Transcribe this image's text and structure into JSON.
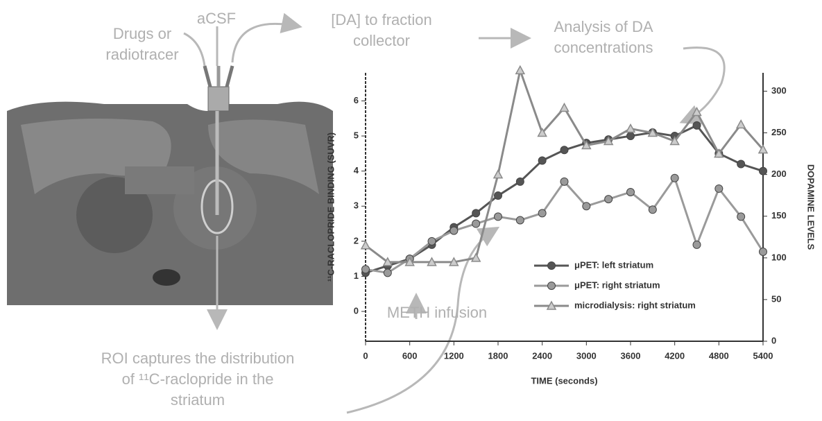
{
  "annotations": {
    "drugs": [
      "Drugs or",
      "radiotracer"
    ],
    "acsf": [
      "aCSF"
    ],
    "fraction": [
      "[DA] to fraction",
      "collector"
    ],
    "analysis": [
      "Analysis of DA",
      "concentrations"
    ],
    "roi": [
      "ROI captures the distribution",
      "of ¹¹C-raclopride in the",
      "striatum"
    ],
    "meth": [
      "METH infusion"
    ]
  },
  "chart_data": {
    "type": "line",
    "x_label": "TIME (seconds)",
    "y_label": "¹¹C-RACLOPRIDE BINDING (SUVR)",
    "y2_label": "DOPAMINE LEVELS",
    "x": [
      0,
      300,
      600,
      900,
      1200,
      1500,
      1800,
      2100,
      2400,
      2700,
      3000,
      3300,
      3600,
      3900,
      4200,
      4500,
      4800,
      5100,
      5400
    ],
    "series": [
      {
        "name": "μPET: left striatum",
        "color": "#555555",
        "marker": "circle",
        "values": [
          1.1,
          1.3,
          1.5,
          1.9,
          2.4,
          2.8,
          3.3,
          3.7,
          4.3,
          4.6,
          4.8,
          4.9,
          5.0,
          5.1,
          5.0,
          5.3,
          4.5,
          4.2,
          4.0
        ]
      },
      {
        "name": "μPET: right striatum",
        "color": "#9a9a9a",
        "marker": "circle",
        "values": [
          1.2,
          1.1,
          1.5,
          2.0,
          2.3,
          2.5,
          2.7,
          2.6,
          2.8,
          3.7,
          3.0,
          3.2,
          3.4,
          2.9,
          3.8,
          1.9,
          3.5,
          2.7,
          1.7
        ]
      },
      {
        "name": "microdialysis: right striatum",
        "color": "#8a8a8a",
        "marker": "triangle",
        "axis": "y2",
        "values": [
          115,
          95,
          95,
          95,
          95,
          100,
          200,
          325,
          250,
          280,
          235,
          240,
          255,
          250,
          240,
          275,
          225,
          260,
          230
        ]
      }
    ],
    "xlim": [
      0,
      5400
    ],
    "xticks": [
      0,
      600,
      1200,
      1800,
      2400,
      3000,
      3600,
      4200,
      4800,
      5400
    ],
    "ylim": [
      -0.85,
      6.8
    ],
    "yticks": [
      0,
      1,
      2,
      3,
      4,
      5,
      6
    ],
    "y2lim": [
      0,
      322
    ],
    "y2ticks": [
      0,
      50,
      100,
      150,
      200,
      250,
      300
    ],
    "legend": "lower-right"
  }
}
